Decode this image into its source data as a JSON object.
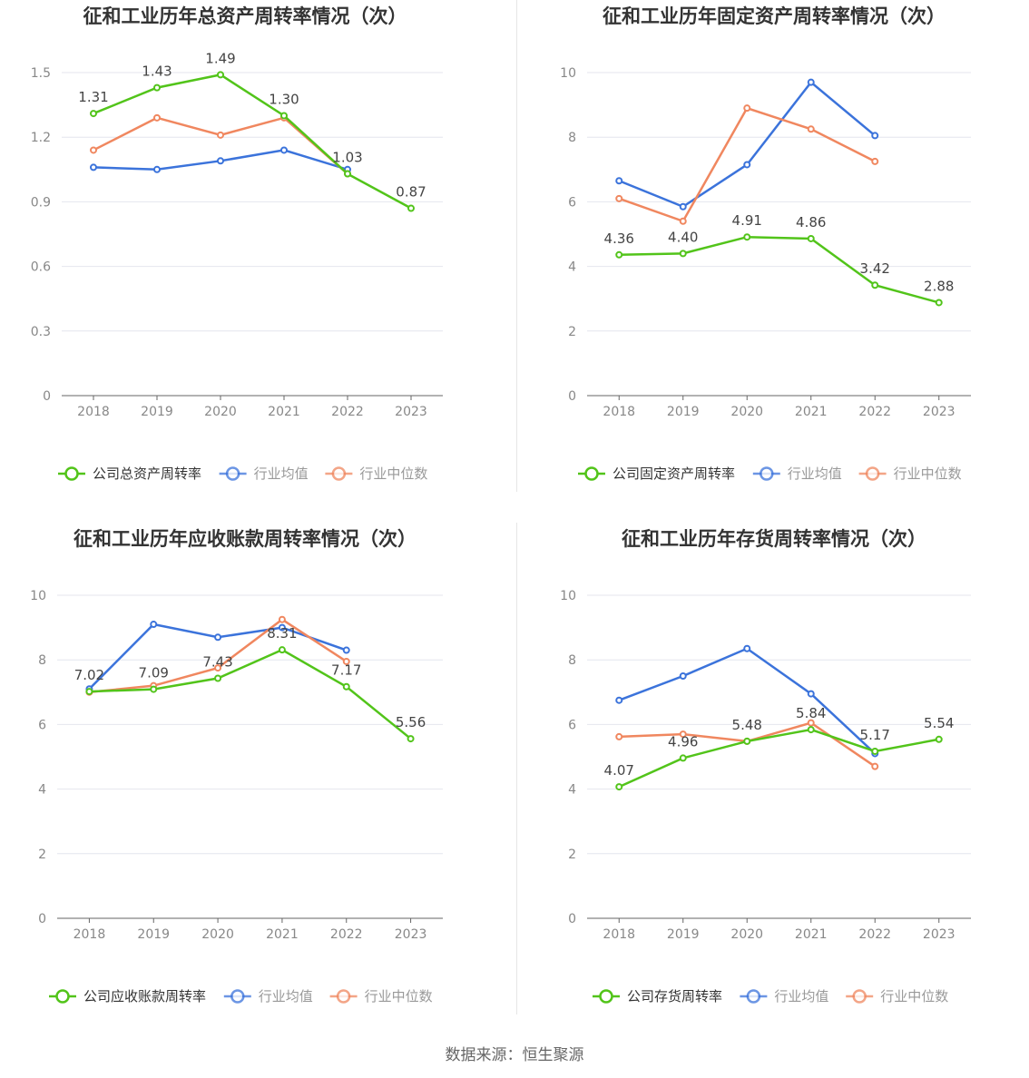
{
  "source": "数据来源：恒生聚源",
  "colors": {
    "company": "#52c41a",
    "avg": "#3b73db",
    "median": "#f0875f"
  },
  "legend": {
    "avg": "行业均值",
    "median": "行业中位数"
  },
  "chart_data": [
    {
      "type": "line",
      "title": "征和工业历年总资产周转率情况（次）",
      "categories": [
        "2018",
        "2019",
        "2020",
        "2021",
        "2022",
        "2023"
      ],
      "ylim": [
        0,
        1.5
      ],
      "yticks": [
        "0",
        "0.3",
        "0.6",
        "0.9",
        "1.2",
        "1.5"
      ],
      "series": [
        {
          "name": "公司总资产周转率",
          "values": [
            1.31,
            1.43,
            1.49,
            1.3,
            1.03,
            0.87
          ],
          "labels": [
            "1.31",
            "1.43",
            "1.49",
            "1.30",
            "1.03",
            "0.87"
          ]
        },
        {
          "name": "行业均值",
          "values": [
            1.06,
            1.05,
            1.09,
            1.14,
            1.05,
            null
          ]
        },
        {
          "name": "行业中位数",
          "values": [
            1.14,
            1.29,
            1.21,
            1.29,
            1.03,
            null
          ]
        }
      ]
    },
    {
      "type": "line",
      "title": "征和工业历年固定资产周转率情况（次）",
      "categories": [
        "2018",
        "2019",
        "2020",
        "2021",
        "2022",
        "2023"
      ],
      "ylim": [
        0,
        10
      ],
      "yticks": [
        "0",
        "2",
        "4",
        "6",
        "8",
        "10"
      ],
      "series": [
        {
          "name": "公司固定资产周转率",
          "values": [
            4.36,
            4.4,
            4.91,
            4.86,
            3.42,
            2.88
          ],
          "labels": [
            "4.36",
            "4.40",
            "4.91",
            "4.86",
            "3.42",
            "2.88"
          ]
        },
        {
          "name": "行业均值",
          "values": [
            6.65,
            5.85,
            7.15,
            9.7,
            8.05,
            null
          ]
        },
        {
          "name": "行业中位数",
          "values": [
            6.1,
            5.4,
            8.9,
            8.25,
            7.25,
            null
          ]
        }
      ]
    },
    {
      "type": "line",
      "title": "征和工业历年应收账款周转率情况（次）",
      "categories": [
        "2018",
        "2019",
        "2020",
        "2021",
        "2022",
        "2023"
      ],
      "ylim": [
        0,
        10
      ],
      "yticks": [
        "0",
        "2",
        "4",
        "6",
        "8",
        "10"
      ],
      "series": [
        {
          "name": "公司应收账款周转率",
          "values": [
            7.02,
            7.09,
            7.43,
            8.31,
            7.17,
            5.56
          ],
          "labels": [
            "7.02",
            "7.09",
            "7.43",
            "8.31",
            "7.17",
            "5.56"
          ]
        },
        {
          "name": "行业均值",
          "values": [
            7.1,
            9.1,
            8.7,
            9.0,
            8.3,
            null
          ]
        },
        {
          "name": "行业中位数",
          "values": [
            7.0,
            7.2,
            7.75,
            9.25,
            7.95,
            null
          ]
        }
      ]
    },
    {
      "type": "line",
      "title": "征和工业历年存货周转率情况（次）",
      "categories": [
        "2018",
        "2019",
        "2020",
        "2021",
        "2022",
        "2023"
      ],
      "ylim": [
        0,
        10
      ],
      "yticks": [
        "0",
        "2",
        "4",
        "6",
        "8",
        "10"
      ],
      "series": [
        {
          "name": "公司存货周转率",
          "values": [
            4.07,
            4.96,
            5.48,
            5.84,
            5.17,
            5.54
          ],
          "labels": [
            "4.07",
            "4.96",
            "5.48",
            "5.84",
            "5.17",
            "5.54"
          ]
        },
        {
          "name": "行业均值",
          "values": [
            6.75,
            7.5,
            8.35,
            6.95,
            5.1,
            null
          ]
        },
        {
          "name": "行业中位数",
          "values": [
            5.62,
            5.7,
            5.48,
            6.05,
            4.7,
            null
          ]
        }
      ]
    }
  ]
}
